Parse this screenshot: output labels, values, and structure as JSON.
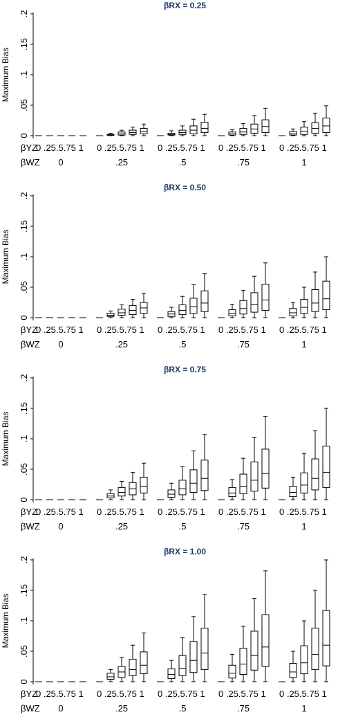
{
  "chart_data": [
    {
      "type": "box",
      "title": "βRX = 0.25",
      "ylabel": "Maximum Bias",
      "ylim": [
        0,
        0.2
      ],
      "yticks": [
        "0",
        ".05",
        ".1",
        ".15",
        ".2"
      ],
      "xrow1_label": "βYZ",
      "xrow2_label": "βWZ",
      "group_labels": [
        "0",
        ".25",
        ".5",
        ".75",
        "1"
      ],
      "sub_labels": [
        "0",
        ".25",
        ".5",
        ".75",
        "1"
      ],
      "groups": [
        {
          "label": "0",
          "boxes": [
            [
              0,
              0,
              0,
              0,
              0
            ],
            [
              0,
              0,
              0,
              0,
              0
            ],
            [
              0,
              0,
              0,
              0,
              0
            ],
            [
              0,
              0,
              0,
              0,
              0
            ],
            [
              0,
              0,
              0,
              0,
              0
            ]
          ]
        },
        {
          "label": ".25",
          "boxes": [
            [
              0,
              0,
              0,
              0,
              0
            ],
            [
              0,
              0.0005,
              0.001,
              0.002,
              0.004
            ],
            [
              0,
              0.001,
              0.003,
              0.006,
              0.009
            ],
            [
              0,
              0.002,
              0.005,
              0.009,
              0.014
            ],
            [
              0,
              0.003,
              0.007,
              0.012,
              0.019
            ]
          ]
        },
        {
          "label": ".5",
          "boxes": [
            [
              0,
              0,
              0,
              0,
              0
            ],
            [
              0,
              0.001,
              0.002,
              0.004,
              0.008
            ],
            [
              0,
              0.002,
              0.005,
              0.009,
              0.016
            ],
            [
              0,
              0.003,
              0.009,
              0.016,
              0.027
            ],
            [
              0,
              0.005,
              0.012,
              0.022,
              0.035
            ]
          ]
        },
        {
          "label": ".75",
          "boxes": [
            [
              0,
              0,
              0,
              0,
              0
            ],
            [
              0,
              0.001,
              0.003,
              0.006,
              0.01
            ],
            [
              0,
              0.002,
              0.006,
              0.012,
              0.02
            ],
            [
              0,
              0.004,
              0.011,
              0.019,
              0.033
            ],
            [
              0,
              0.005,
              0.015,
              0.026,
              0.045
            ]
          ]
        },
        {
          "label": "1",
          "boxes": [
            [
              0,
              0,
              0,
              0,
              0
            ],
            [
              0,
              0.001,
              0.003,
              0.007,
              0.011
            ],
            [
              0,
              0.002,
              0.007,
              0.014,
              0.023
            ],
            [
              0,
              0.004,
              0.012,
              0.021,
              0.037
            ],
            [
              0,
              0.005,
              0.016,
              0.029,
              0.049
            ]
          ]
        }
      ]
    },
    {
      "type": "box",
      "title": "βRX = 0.50",
      "ylabel": "Maximum Bias",
      "ylim": [
        0,
        0.2
      ],
      "yticks": [
        "0",
        ".05",
        ".1",
        ".15",
        ".2"
      ],
      "xrow1_label": "βYZ",
      "xrow2_label": "βWZ",
      "group_labels": [
        "0",
        ".25",
        ".5",
        ".75",
        "1"
      ],
      "sub_labels": [
        "0",
        ".25",
        ".5",
        ".75",
        "1"
      ],
      "groups": [
        {
          "label": "0",
          "boxes": [
            [
              0,
              0,
              0,
              0,
              0
            ],
            [
              0,
              0,
              0,
              0,
              0
            ],
            [
              0,
              0,
              0,
              0,
              0
            ],
            [
              0,
              0,
              0,
              0,
              0
            ],
            [
              0,
              0,
              0,
              0,
              0
            ]
          ]
        },
        {
          "label": ".25",
          "boxes": [
            [
              0,
              0,
              0,
              0,
              0
            ],
            [
              0,
              0.002,
              0.004,
              0.007,
              0.011
            ],
            [
              0,
              0.004,
              0.008,
              0.014,
              0.021
            ],
            [
              0,
              0.005,
              0.012,
              0.02,
              0.03
            ],
            [
              0,
              0.007,
              0.016,
              0.025,
              0.04
            ]
          ]
        },
        {
          "label": ".5",
          "boxes": [
            [
              0,
              0,
              0,
              0,
              0
            ],
            [
              0,
              0.002,
              0.006,
              0.01,
              0.017
            ],
            [
              0,
              0.005,
              0.012,
              0.021,
              0.035
            ],
            [
              0,
              0.007,
              0.018,
              0.032,
              0.054
            ],
            [
              0,
              0.01,
              0.024,
              0.044,
              0.072
            ]
          ]
        },
        {
          "label": ".75",
          "boxes": [
            [
              0,
              0,
              0,
              0,
              0
            ],
            [
              0,
              0.003,
              0.007,
              0.013,
              0.022
            ],
            [
              0,
              0.006,
              0.015,
              0.028,
              0.045
            ],
            [
              0,
              0.009,
              0.022,
              0.041,
              0.068
            ],
            [
              0,
              0.012,
              0.029,
              0.055,
              0.09
            ]
          ]
        },
        {
          "label": "1",
          "boxes": [
            [
              0,
              0,
              0,
              0,
              0
            ],
            [
              0,
              0.003,
              0.008,
              0.015,
              0.025
            ],
            [
              0,
              0.007,
              0.017,
              0.03,
              0.05
            ],
            [
              0,
              0.01,
              0.024,
              0.046,
              0.075
            ],
            [
              0,
              0.013,
              0.031,
              0.06,
              0.1
            ]
          ]
        }
      ]
    },
    {
      "type": "box",
      "title": "βRX = 0.75",
      "ylabel": "Maximum Bias",
      "ylim": [
        0,
        0.2
      ],
      "yticks": [
        "0",
        ".05",
        ".1",
        ".15",
        ".2"
      ],
      "xrow1_label": "βYZ",
      "xrow2_label": "βWZ",
      "group_labels": [
        "0",
        ".25",
        ".5",
        ".75",
        "1"
      ],
      "sub_labels": [
        "0",
        ".25",
        ".5",
        ".75",
        "1"
      ],
      "groups": [
        {
          "label": "0",
          "boxes": [
            [
              0,
              0,
              0,
              0,
              0
            ],
            [
              0,
              0,
              0,
              0,
              0
            ],
            [
              0,
              0,
              0,
              0,
              0
            ],
            [
              0,
              0,
              0,
              0,
              0
            ],
            [
              0,
              0,
              0,
              0,
              0
            ]
          ]
        },
        {
          "label": ".25",
          "boxes": [
            [
              0,
              0,
              0,
              0,
              0
            ],
            [
              0,
              0.003,
              0.006,
              0.01,
              0.016
            ],
            [
              0,
              0.006,
              0.012,
              0.02,
              0.03
            ],
            [
              0,
              0.008,
              0.018,
              0.028,
              0.045
            ],
            [
              0,
              0.011,
              0.022,
              0.037,
              0.06
            ]
          ]
        },
        {
          "label": ".5",
          "boxes": [
            [
              0,
              0,
              0,
              0,
              0
            ],
            [
              0,
              0.004,
              0.009,
              0.016,
              0.027
            ],
            [
              0,
              0.008,
              0.018,
              0.032,
              0.054
            ],
            [
              0,
              0.012,
              0.027,
              0.049,
              0.08
            ],
            [
              0,
              0.015,
              0.035,
              0.065,
              0.107
            ]
          ]
        },
        {
          "label": ".75",
          "boxes": [
            [
              0,
              0,
              0,
              0,
              0
            ],
            [
              0,
              0.005,
              0.011,
              0.02,
              0.033
            ],
            [
              0,
              0.01,
              0.022,
              0.042,
              0.068
            ],
            [
              0,
              0.014,
              0.032,
              0.062,
              0.102
            ],
            [
              0,
              0.019,
              0.043,
              0.083,
              0.137
            ]
          ]
        },
        {
          "label": "1",
          "boxes": [
            [
              0,
              0,
              0,
              0,
              0
            ],
            [
              0,
              0.005,
              0.012,
              0.022,
              0.037
            ],
            [
              0,
              0.011,
              0.024,
              0.044,
              0.076
            ],
            [
              0,
              0.016,
              0.035,
              0.067,
              0.113
            ],
            [
              0,
              0.02,
              0.045,
              0.088,
              0.15
            ]
          ]
        }
      ]
    },
    {
      "type": "box",
      "title": "βRX = 1.00",
      "ylabel": "Maximum Bias",
      "ylim": [
        0,
        0.2
      ],
      "yticks": [
        "0",
        ".05",
        ".1",
        ".15",
        ".2"
      ],
      "xrow1_label": "βYZ",
      "xrow2_label": "βWZ",
      "group_labels": [
        "0",
        ".25",
        ".5",
        ".75",
        "1"
      ],
      "sub_labels": [
        "0",
        ".25",
        ".5",
        ".75",
        "1"
      ],
      "groups": [
        {
          "label": "0",
          "boxes": [
            [
              0,
              0,
              0,
              0,
              0
            ],
            [
              0,
              0,
              0,
              0,
              0
            ],
            [
              0,
              0,
              0,
              0,
              0
            ],
            [
              0,
              0,
              0,
              0,
              0
            ],
            [
              0,
              0,
              0,
              0,
              0
            ]
          ]
        },
        {
          "label": ".25",
          "boxes": [
            [
              0,
              0,
              0,
              0,
              0
            ],
            [
              0,
              0.004,
              0.008,
              0.014,
              0.02
            ],
            [
              0,
              0.007,
              0.016,
              0.025,
              0.04
            ],
            [
              0,
              0.01,
              0.02,
              0.037,
              0.06
            ],
            [
              0,
              0.013,
              0.027,
              0.049,
              0.08
            ]
          ]
        },
        {
          "label": ".5",
          "boxes": [
            [
              0,
              0,
              0,
              0,
              0
            ],
            [
              0,
              0.005,
              0.012,
              0.021,
              0.035
            ],
            [
              0,
              0.01,
              0.022,
              0.043,
              0.072
            ],
            [
              0,
              0.015,
              0.035,
              0.066,
              0.107
            ],
            [
              0,
              0.02,
              0.047,
              0.088,
              0.143
            ]
          ]
        },
        {
          "label": ".75",
          "boxes": [
            [
              0,
              0,
              0,
              0,
              0
            ],
            [
              0,
              0.006,
              0.014,
              0.027,
              0.045
            ],
            [
              0,
              0.012,
              0.029,
              0.055,
              0.091
            ],
            [
              0,
              0.019,
              0.043,
              0.083,
              0.137
            ],
            [
              0,
              0.025,
              0.057,
              0.11,
              0.182
            ]
          ]
        },
        {
          "label": "1",
          "boxes": [
            [
              0,
              0,
              0,
              0,
              0
            ],
            [
              0,
              0.007,
              0.016,
              0.03,
              0.05
            ],
            [
              0,
              0.013,
              0.031,
              0.059,
              0.1
            ],
            [
              0,
              0.02,
              0.045,
              0.088,
              0.15
            ],
            [
              0,
              0.026,
              0.06,
              0.117,
              0.2
            ]
          ]
        }
      ]
    }
  ]
}
